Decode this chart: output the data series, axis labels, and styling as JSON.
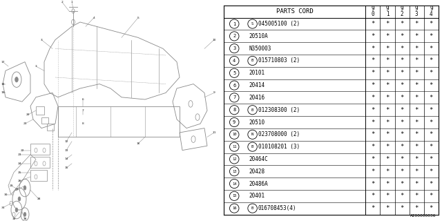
{
  "title": "PARTS CORD",
  "year_labels": [
    "9\n0",
    "9\n1",
    "9\n2",
    "9\n3",
    "9\n4"
  ],
  "rows": [
    {
      "num": "1",
      "prefix": "S",
      "part": "045005100 (2)"
    },
    {
      "num": "2",
      "prefix": "",
      "part": "20510A"
    },
    {
      "num": "3",
      "prefix": "",
      "part": "N350003"
    },
    {
      "num": "4",
      "prefix": "B",
      "part": "015710803 (2)"
    },
    {
      "num": "5",
      "prefix": "",
      "part": "20101"
    },
    {
      "num": "6",
      "prefix": "",
      "part": "20414"
    },
    {
      "num": "7",
      "prefix": "",
      "part": "20416"
    },
    {
      "num": "8",
      "prefix": "B",
      "part": "012308300 (2)"
    },
    {
      "num": "9",
      "prefix": "",
      "part": "20510"
    },
    {
      "num": "10",
      "prefix": "N",
      "part": "023708000 (2)"
    },
    {
      "num": "11",
      "prefix": "B",
      "part": "010108201 (3)"
    },
    {
      "num": "12",
      "prefix": "",
      "part": "20464C"
    },
    {
      "num": "13",
      "prefix": "",
      "part": "20428"
    },
    {
      "num": "14",
      "prefix": "",
      "part": "20486A"
    },
    {
      "num": "15",
      "prefix": "",
      "part": "20401"
    },
    {
      "num": "16",
      "prefix": "B",
      "part": "016708453(4)"
    }
  ],
  "watermark": "A200000036",
  "bg_color": "#ffffff",
  "line_color": "#000000",
  "diagram_line_color": "#888888"
}
